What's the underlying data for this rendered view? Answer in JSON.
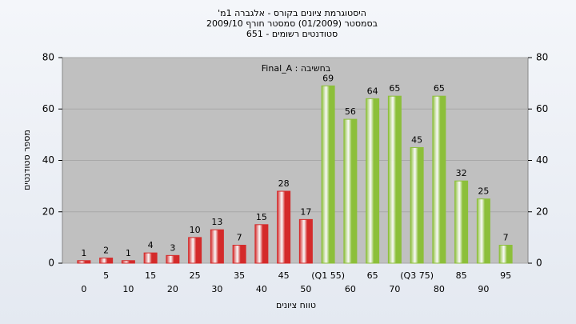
{
  "chart_data": {
    "type": "bar",
    "title": "'היסטוגרמת ציונים בקורס - אלגברה 1מ",
    "subtitle": "בסמסטר (01/2009) סמסטר חורף 2009/10",
    "subtitle2": "סטודנטים רשומים - 651",
    "annotation": "Final_A : בחשיבה",
    "x_label": "טווח ציונים",
    "y_label": "מספר סטודנטים",
    "categories": [
      "0",
      "5",
      "10",
      "15",
      "20",
      "25",
      "30",
      "35",
      "40",
      "45",
      "50",
      "(Q1 55)",
      "60",
      "65",
      "70",
      "(Q3 75)",
      "80",
      "85",
      "90",
      "95"
    ],
    "values": [
      1,
      2,
      1,
      4,
      3,
      10,
      13,
      7,
      15,
      28,
      17,
      69,
      56,
      64,
      65,
      45,
      65,
      32,
      25,
      7
    ],
    "colors": [
      "#d42a2a",
      "#d42a2a",
      "#d42a2a",
      "#d42a2a",
      "#d42a2a",
      "#d42a2a",
      "#d42a2a",
      "#d42a2a",
      "#d42a2a",
      "#d42a2a",
      "#d42a2a",
      "#8cbf3a",
      "#8cbf3a",
      "#8cbf3a",
      "#8cbf3a",
      "#8cbf3a",
      "#8cbf3a",
      "#8cbf3a",
      "#8cbf3a",
      "#8cbf3a"
    ],
    "ylim": [
      0,
      80
    ],
    "yticks": [
      0,
      20,
      40,
      60,
      80
    ],
    "y2lim": [
      0,
      80
    ],
    "y2ticks": [
      0,
      20,
      40,
      60,
      80
    ],
    "grid": true
  }
}
